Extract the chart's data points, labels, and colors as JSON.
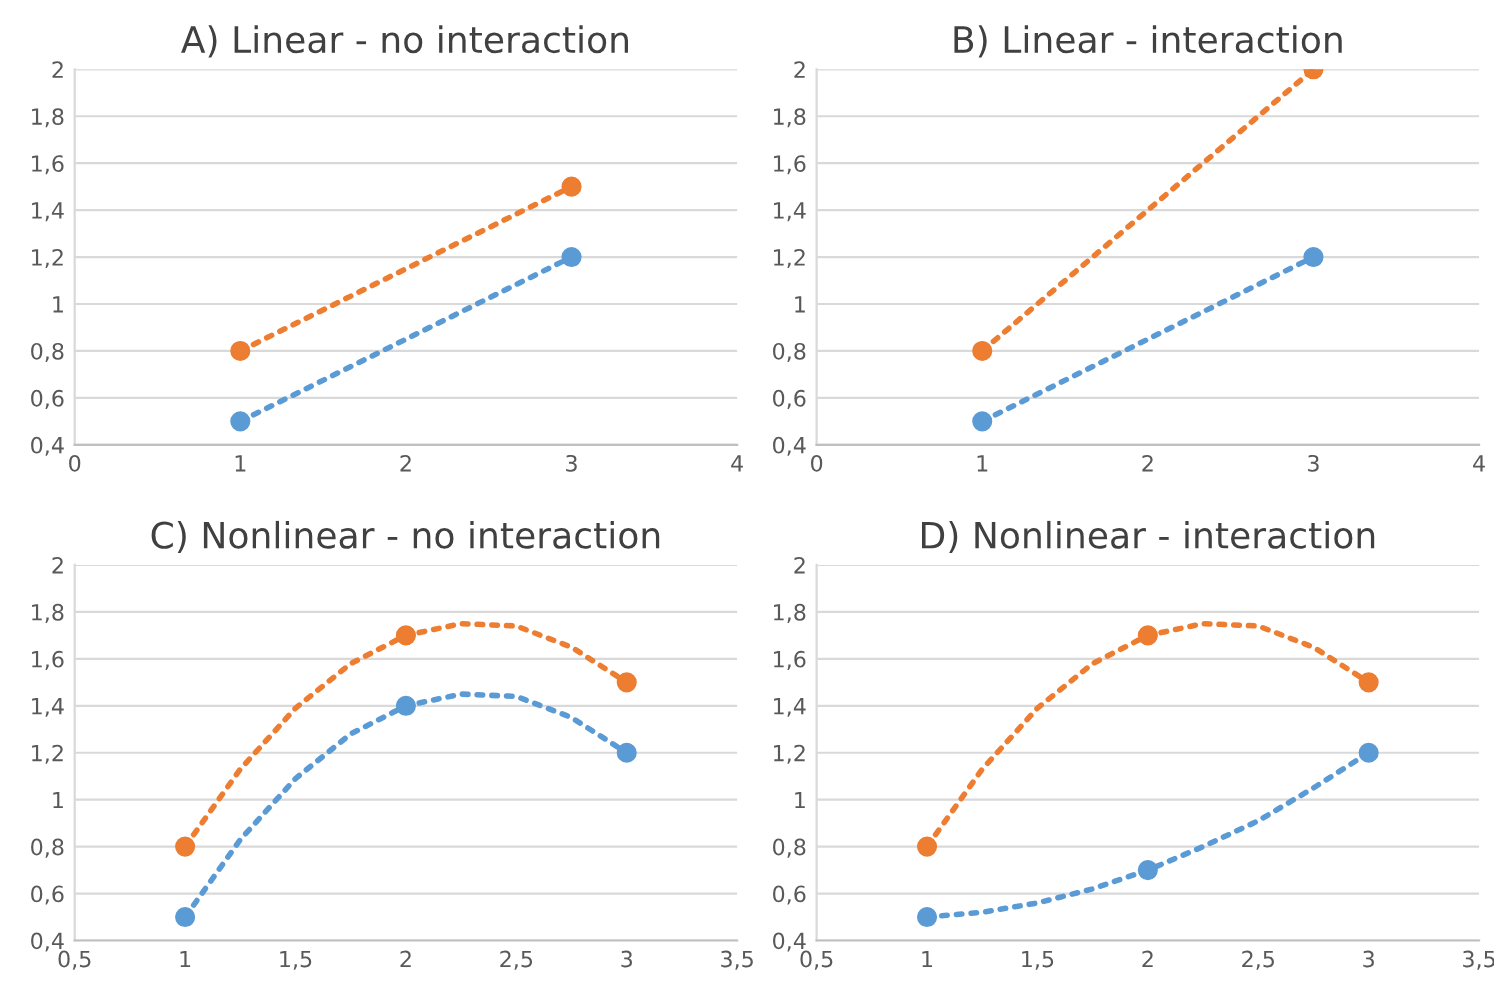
{
  "chart_data": [
    {
      "type": "line",
      "title": "A) Linear - no interaction",
      "x": [
        1,
        3
      ],
      "xlim": [
        0,
        4
      ],
      "xticks": [
        0,
        1,
        2,
        3,
        4
      ],
      "ylim": [
        0.4,
        2
      ],
      "yticks": [
        {
          "value": 0.4,
          "label": "0,4"
        },
        {
          "value": 0.6,
          "label": "0,6"
        },
        {
          "value": 0.8,
          "label": "0,8"
        },
        {
          "value": 1,
          "label": "1"
        },
        {
          "value": 1.2,
          "label": "1,2"
        },
        {
          "value": 1.4,
          "label": "1,4"
        },
        {
          "value": 1.6,
          "label": "1,6"
        },
        {
          "value": 1.8,
          "label": "1,8"
        },
        {
          "value": 2,
          "label": "2"
        }
      ],
      "grid": "y",
      "marker": "circle",
      "line_style": "dotted",
      "legend": false,
      "series": [
        {
          "color": "#5b9bd5",
          "values": [
            0.5,
            1.2
          ]
        },
        {
          "color": "#ed7d31",
          "values": [
            0.8,
            1.5
          ]
        }
      ]
    },
    {
      "type": "line",
      "title": "B) Linear - interaction",
      "x": [
        1,
        3
      ],
      "xlim": [
        0,
        4
      ],
      "xticks": [
        0,
        1,
        2,
        3,
        4
      ],
      "ylim": [
        0.4,
        2
      ],
      "yticks": [
        {
          "value": 0.4,
          "label": "0,4"
        },
        {
          "value": 0.6,
          "label": "0,6"
        },
        {
          "value": 0.8,
          "label": "0,8"
        },
        {
          "value": 1,
          "label": "1"
        },
        {
          "value": 1.2,
          "label": "1,2"
        },
        {
          "value": 1.4,
          "label": "1,4"
        },
        {
          "value": 1.6,
          "label": "1,6"
        },
        {
          "value": 1.8,
          "label": "1,8"
        },
        {
          "value": 2,
          "label": "2"
        }
      ],
      "grid": "y",
      "marker": "circle",
      "line_style": "dotted",
      "legend": false,
      "series": [
        {
          "color": "#5b9bd5",
          "values": [
            0.5,
            1.2
          ]
        },
        {
          "color": "#ed7d31",
          "values": [
            0.8,
            2
          ]
        }
      ]
    },
    {
      "type": "line",
      "title": "C) Nonlinear - no interaction",
      "x": [
        1,
        2,
        3
      ],
      "xlim": [
        0.5,
        3.5
      ],
      "xticks": [
        {
          "value": 0.5,
          "label": "0,5"
        },
        1,
        {
          "value": 1.5,
          "label": "1,5"
        },
        2,
        {
          "value": 2.5,
          "label": "2,5"
        },
        3,
        {
          "value": 3.5,
          "label": "3,5"
        }
      ],
      "ylim": [
        0.4,
        2
      ],
      "yticks": [
        {
          "value": 0.4,
          "label": "0,4"
        },
        {
          "value": 0.6,
          "label": "0,6"
        },
        {
          "value": 0.8,
          "label": "0,8"
        },
        {
          "value": 1,
          "label": "1"
        },
        {
          "value": 1.2,
          "label": "1,2"
        },
        {
          "value": 1.4,
          "label": "1,4"
        },
        {
          "value": 1.6,
          "label": "1,6"
        },
        {
          "value": 1.8,
          "label": "1,8"
        },
        {
          "value": 2,
          "label": "2"
        }
      ],
      "grid": "y",
      "marker": "circle",
      "line_style": "dotted",
      "legend": false,
      "series": [
        {
          "type": "scatter",
          "color": "#5b9bd5",
          "values": [
            0.5,
            1.4,
            1.2
          ]
        },
        {
          "type": "scatter",
          "color": "#ed7d31",
          "values": [
            0.8,
            1.7,
            1.5
          ]
        },
        {
          "type": "line",
          "marker": "none",
          "color": "#5b9bd5",
          "x": [
            1,
            1.25,
            1.5,
            1.75,
            2,
            2.25,
            2.5,
            2.75,
            3
          ],
          "values": [
            0.5,
            0.83,
            1.09,
            1.28,
            1.4,
            1.45,
            1.44,
            1.35,
            1.2
          ]
        },
        {
          "type": "line",
          "marker": "none",
          "color": "#ed7d31",
          "x": [
            1,
            1.25,
            1.5,
            1.75,
            2,
            2.25,
            2.5,
            2.75,
            3
          ],
          "values": [
            0.8,
            1.13,
            1.39,
            1.58,
            1.7,
            1.75,
            1.74,
            1.65,
            1.5
          ]
        }
      ]
    },
    {
      "type": "line",
      "title": "D) Nonlinear - interaction",
      "x": [
        1,
        2,
        3
      ],
      "xlim": [
        0.5,
        3.5
      ],
      "xticks": [
        {
          "value": 0.5,
          "label": "0,5"
        },
        1,
        {
          "value": 1.5,
          "label": "1,5"
        },
        2,
        {
          "value": 2.5,
          "label": "2,5"
        },
        3,
        {
          "value": 3.5,
          "label": "3,5"
        }
      ],
      "ylim": [
        0.4,
        2
      ],
      "yticks": [
        {
          "value": 0.4,
          "label": "0,4"
        },
        {
          "value": 0.6,
          "label": "0,6"
        },
        {
          "value": 0.8,
          "label": "0,8"
        },
        {
          "value": 1,
          "label": "1"
        },
        {
          "value": 1.2,
          "label": "1,2"
        },
        {
          "value": 1.4,
          "label": "1,4"
        },
        {
          "value": 1.6,
          "label": "1,6"
        },
        {
          "value": 1.8,
          "label": "1,8"
        },
        {
          "value": 2,
          "label": "2"
        }
      ],
      "grid": "y",
      "marker": "circle",
      "line_style": "dotted",
      "legend": false,
      "series": [
        {
          "type": "scatter",
          "color": "#5b9bd5",
          "values": [
            0.5,
            0.7,
            1.2
          ]
        },
        {
          "type": "scatter",
          "color": "#ed7d31",
          "values": [
            0.8,
            1.7,
            1.5
          ]
        },
        {
          "type": "line",
          "marker": "none",
          "color": "#5b9bd5",
          "x": [
            1,
            1.25,
            1.5,
            1.75,
            2,
            2.25,
            2.5,
            2.75,
            3
          ],
          "values": [
            0.5,
            0.52,
            0.56,
            0.62,
            0.7,
            0.8,
            0.91,
            1.05,
            1.2
          ]
        },
        {
          "type": "line",
          "marker": "none",
          "color": "#ed7d31",
          "x": [
            1,
            1.25,
            1.5,
            1.75,
            2,
            2.25,
            2.5,
            2.75,
            3
          ],
          "values": [
            0.8,
            1.13,
            1.39,
            1.58,
            1.7,
            1.75,
            1.74,
            1.65,
            1.5
          ]
        }
      ]
    }
  ]
}
